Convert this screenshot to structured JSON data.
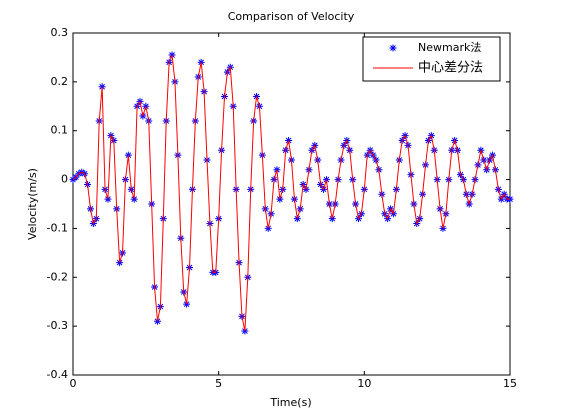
{
  "chart_data": {
    "type": "line",
    "title": "Comparison of Velocity",
    "xlabel": "Time(s)",
    "ylabel": "Velocity(m/s)",
    "xlim": [
      0,
      15
    ],
    "xticks": [
      0,
      5,
      10,
      15
    ],
    "ylim": [
      -0.4,
      0.3
    ],
    "yticks": [
      -0.4,
      -0.3,
      -0.2,
      -0.1,
      0,
      0.1,
      0.2,
      0.3
    ],
    "legend": "upper right",
    "grid": false,
    "x": [
      0,
      0.1,
      0.2,
      0.3,
      0.4,
      0.5,
      0.6,
      0.7,
      0.8,
      0.9,
      1,
      1.1,
      1.2,
      1.3,
      1.4,
      1.5,
      1.6,
      1.7,
      1.8,
      1.9,
      2,
      2.1,
      2.2,
      2.3,
      2.4,
      2.5,
      2.6,
      2.7,
      2.8,
      2.9,
      3,
      3.1,
      3.2,
      3.3,
      3.4,
      3.5,
      3.6,
      3.7,
      3.8,
      3.9,
      4,
      4.1,
      4.2,
      4.3,
      4.4,
      4.5,
      4.6,
      4.7,
      4.8,
      4.9,
      5,
      5.1,
      5.2,
      5.3,
      5.4,
      5.5,
      5.6,
      5.7,
      5.8,
      5.9,
      6,
      6.1,
      6.2,
      6.3,
      6.4,
      6.5,
      6.6,
      6.7,
      6.8,
      6.9,
      7,
      7.1,
      7.2,
      7.3,
      7.4,
      7.5,
      7.6,
      7.7,
      7.8,
      7.9,
      8,
      8.1,
      8.2,
      8.3,
      8.4,
      8.5,
      8.6,
      8.7,
      8.8,
      8.9,
      9,
      9.1,
      9.2,
      9.3,
      9.4,
      9.5,
      9.6,
      9.7,
      9.8,
      9.9,
      10,
      10.1,
      10.2,
      10.3,
      10.4,
      10.5,
      10.6,
      10.7,
      10.8,
      10.9,
      11,
      11.1,
      11.2,
      11.3,
      11.4,
      11.5,
      11.6,
      11.7,
      11.8,
      11.9,
      12,
      12.1,
      12.2,
      12.3,
      12.4,
      12.5,
      12.6,
      12.7,
      12.8,
      12.9,
      13,
      13.1,
      13.2,
      13.3,
      13.4,
      13.5,
      13.6,
      13.7,
      13.8,
      13.9,
      14,
      14.1,
      14.2,
      14.3,
      14.4,
      14.5,
      14.6,
      14.7,
      14.8,
      14.9,
      15
    ],
    "series": [
      {
        "name": "Newmark法",
        "color": "#0000ff",
        "marker": "*",
        "linestyle": "none",
        "values": [
          0,
          0.005,
          0.012,
          0.015,
          0.012,
          -0.01,
          -0.06,
          -0.09,
          -0.08,
          0.12,
          0.19,
          -0.02,
          -0.04,
          0.09,
          0.08,
          -0.06,
          -0.17,
          -0.15,
          0,
          0.05,
          -0.02,
          -0.04,
          0.15,
          0.16,
          0.13,
          0.15,
          0.12,
          -0.05,
          -0.22,
          -0.29,
          -0.26,
          -0.08,
          0.12,
          0.24,
          0.255,
          0.2,
          0.05,
          -0.12,
          -0.23,
          -0.255,
          -0.18,
          -0.02,
          0.12,
          0.21,
          0.24,
          0.18,
          0.04,
          -0.09,
          -0.19,
          -0.19,
          -0.08,
          0.06,
          0.17,
          0.22,
          0.23,
          0.15,
          -0.02,
          -0.17,
          -0.28,
          -0.31,
          -0.2,
          -0.02,
          0.12,
          0.17,
          0.15,
          0.05,
          -0.06,
          -0.1,
          -0.07,
          0,
          0.02,
          -0.04,
          -0.02,
          0.06,
          0.08,
          0.04,
          -0.04,
          -0.08,
          -0.06,
          -0.01,
          -0.02,
          0.02,
          0.06,
          0.07,
          0.04,
          -0.01,
          -0.02,
          0,
          -0.05,
          -0.08,
          -0.05,
          0,
          0.04,
          0.07,
          0.08,
          0.06,
          0,
          -0.05,
          -0.08,
          -0.07,
          -0.02,
          0.05,
          0.06,
          0.05,
          0.04,
          0.02,
          -0.03,
          -0.07,
          -0.08,
          -0.06,
          -0.07,
          -0.02,
          0.04,
          0.08,
          0.09,
          0.07,
          0.01,
          -0.05,
          -0.09,
          -0.08,
          -0.03,
          0.03,
          0.08,
          0.09,
          0.06,
          0,
          -0.06,
          -0.1,
          -0.07,
          0,
          0.06,
          0.08,
          0.06,
          0.01,
          0,
          -0.03,
          -0.05,
          -0.03,
          0,
          0.03,
          0.06,
          0.04,
          0.02,
          0.04,
          0.05,
          0.02,
          -0.02,
          -0.04,
          -0.03,
          -0.04,
          -0.04
        ]
      },
      {
        "name": "中心差分法",
        "color": "#ff0000",
        "marker": "none",
        "linestyle": "solid",
        "values": [
          0,
          0.005,
          0.012,
          0.015,
          0.012,
          -0.01,
          -0.06,
          -0.09,
          -0.08,
          0.12,
          0.19,
          -0.02,
          -0.04,
          0.09,
          0.08,
          -0.06,
          -0.17,
          -0.15,
          0,
          0.05,
          -0.02,
          -0.04,
          0.15,
          0.16,
          0.13,
          0.15,
          0.12,
          -0.05,
          -0.22,
          -0.29,
          -0.26,
          -0.08,
          0.12,
          0.24,
          0.255,
          0.2,
          0.05,
          -0.12,
          -0.23,
          -0.255,
          -0.18,
          -0.02,
          0.12,
          0.21,
          0.24,
          0.18,
          0.04,
          -0.09,
          -0.19,
          -0.19,
          -0.08,
          0.06,
          0.17,
          0.22,
          0.23,
          0.15,
          -0.02,
          -0.17,
          -0.28,
          -0.31,
          -0.2,
          -0.02,
          0.12,
          0.17,
          0.15,
          0.05,
          -0.06,
          -0.1,
          -0.07,
          0,
          0.02,
          -0.04,
          -0.02,
          0.06,
          0.08,
          0.04,
          -0.04,
          -0.08,
          -0.06,
          -0.01,
          -0.02,
          0.02,
          0.06,
          0.07,
          0.04,
          -0.01,
          -0.02,
          0,
          -0.05,
          -0.08,
          -0.05,
          0,
          0.04,
          0.07,
          0.08,
          0.06,
          0,
          -0.05,
          -0.08,
          -0.07,
          -0.02,
          0.05,
          0.06,
          0.05,
          0.04,
          0.02,
          -0.03,
          -0.07,
          -0.08,
          -0.06,
          -0.07,
          -0.02,
          0.04,
          0.08,
          0.09,
          0.07,
          0.01,
          -0.05,
          -0.09,
          -0.08,
          -0.03,
          0.03,
          0.08,
          0.09,
          0.06,
          0,
          -0.06,
          -0.1,
          -0.07,
          0,
          0.06,
          0.08,
          0.06,
          0.01,
          0,
          -0.03,
          -0.05,
          -0.03,
          0,
          0.03,
          0.06,
          0.04,
          0.02,
          0.04,
          0.05,
          0.02,
          -0.02,
          -0.04,
          -0.03,
          -0.04,
          -0.04
        ]
      }
    ]
  }
}
